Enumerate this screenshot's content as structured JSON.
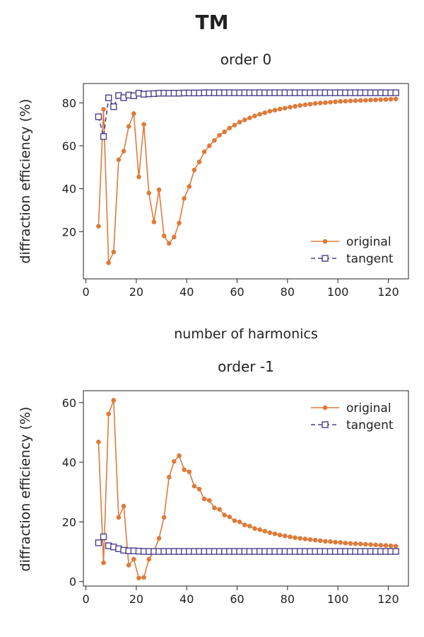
{
  "figure": {
    "title": "TM"
  },
  "colors": {
    "original": "#de7b3a",
    "tangent": "#4b3f8c"
  },
  "chart_data": [
    {
      "type": "line",
      "title": "order 0",
      "xlabel": "number of harmonics",
      "ylabel": "diffraction efficiency (%)",
      "xlim": [
        -1,
        128
      ],
      "ylim": [
        -2,
        89
      ],
      "xticks": [
        0,
        20,
        40,
        60,
        80,
        100,
        120
      ],
      "yticks": [
        20,
        40,
        60,
        80
      ],
      "legend": [
        "original",
        "tangent"
      ],
      "legend_position": "lower-right",
      "x": [
        5,
        7,
        9,
        11,
        13,
        15,
        17,
        19,
        21,
        23,
        25,
        27,
        29,
        31,
        33,
        35,
        37,
        39,
        41,
        43,
        45,
        47,
        49,
        51,
        53,
        55,
        57,
        59,
        61,
        63,
        65,
        67,
        69,
        71,
        73,
        75,
        77,
        79,
        81,
        83,
        85,
        87,
        89,
        91,
        93,
        95,
        97,
        99,
        101,
        103,
        105,
        107,
        109,
        111,
        113,
        115,
        117,
        119,
        121,
        123
      ],
      "series": [
        {
          "name": "original",
          "marker": "circle",
          "values": [
            22.5,
            77,
            5.5,
            10.5,
            53.5,
            57.5,
            69,
            75,
            45.5,
            70,
            38,
            24.5,
            39.5,
            18,
            14.5,
            17.5,
            24,
            35.5,
            41,
            48.7,
            52.5,
            57.2,
            60,
            62.5,
            64.9,
            66.5,
            68.3,
            69.6,
            71,
            72.1,
            73,
            73.9,
            74.7,
            75.4,
            76.1,
            76.6,
            77.1,
            77.5,
            78,
            78.4,
            78.8,
            79.1,
            79.4,
            79.7,
            79.9,
            80.1,
            80.3,
            80.5,
            80.7,
            80.8,
            80.9,
            81,
            81.1,
            81.2,
            81.3,
            81.4,
            81.5,
            81.6,
            81.7,
            81.8
          ]
        },
        {
          "name": "tangent",
          "marker": "square",
          "values": [
            73.5,
            64.3,
            82.3,
            78.2,
            83.4,
            82.4,
            83.6,
            83.3,
            84.5,
            84,
            84.2,
            84.3,
            84.5,
            84.5,
            84.5,
            84.5,
            84.5,
            84.6,
            84.6,
            84.6,
            84.6,
            84.7,
            84.7,
            84.7,
            84.7,
            84.7,
            84.7,
            84.7,
            84.7,
            84.7,
            84.7,
            84.7,
            84.7,
            84.7,
            84.7,
            84.7,
            84.7,
            84.7,
            84.7,
            84.7,
            84.7,
            84.7,
            84.7,
            84.7,
            84.7,
            84.7,
            84.7,
            84.7,
            84.7,
            84.7,
            84.7,
            84.7,
            84.7,
            84.7,
            84.7,
            84.7,
            84.7,
            84.7,
            84.7,
            84.7
          ]
        }
      ]
    },
    {
      "type": "line",
      "title": "order -1",
      "xlabel": "",
      "ylabel": "diffraction efficiency (%)",
      "xlim": [
        -1,
        128
      ],
      "ylim": [
        -1.5,
        64
      ],
      "xticks": [
        0,
        20,
        40,
        60,
        80,
        100,
        120
      ],
      "yticks": [
        0,
        20,
        40,
        60
      ],
      "legend": [
        "original",
        "tangent"
      ],
      "legend_position": "upper-right",
      "x": [
        5,
        7,
        9,
        11,
        13,
        15,
        17,
        19,
        21,
        23,
        25,
        27,
        29,
        31,
        33,
        35,
        37,
        39,
        41,
        43,
        45,
        47,
        49,
        51,
        53,
        55,
        57,
        59,
        61,
        63,
        65,
        67,
        69,
        71,
        73,
        75,
        77,
        79,
        81,
        83,
        85,
        87,
        89,
        91,
        93,
        95,
        97,
        99,
        101,
        103,
        105,
        107,
        109,
        111,
        113,
        115,
        117,
        119,
        121,
        123
      ],
      "series": [
        {
          "name": "original",
          "marker": "circle",
          "values": [
            46.8,
            6.3,
            56.2,
            60.8,
            21.5,
            25.3,
            5.5,
            7.5,
            1.2,
            1.4,
            7.5,
            10,
            14.5,
            21.5,
            35,
            40.3,
            42.2,
            37.5,
            36.8,
            32,
            31,
            27.7,
            27.2,
            24.7,
            24.2,
            22.3,
            21.7,
            20.4,
            20,
            19,
            18.6,
            17.8,
            17.4,
            16.9,
            16.4,
            16,
            15.6,
            15.3,
            15,
            14.7,
            14.5,
            14.3,
            14.1,
            13.9,
            13.7,
            13.5,
            13.4,
            13.2,
            13.1,
            12.9,
            12.8,
            12.7,
            12.6,
            12.5,
            12.4,
            12.3,
            12.2,
            12.1,
            12,
            11.9
          ]
        },
        {
          "name": "tangent",
          "marker": "square",
          "values": [
            13,
            15,
            12,
            11.6,
            11,
            10.5,
            10.3,
            10.3,
            10.2,
            10.1,
            10.1,
            10.1,
            10.1,
            10.1,
            10.1,
            10.1,
            10.1,
            10.1,
            10.1,
            10.1,
            10.1,
            10.1,
            10.1,
            10.1,
            10.1,
            10.1,
            10.1,
            10.1,
            10.1,
            10.1,
            10.1,
            10.1,
            10.1,
            10.1,
            10.1,
            10.1,
            10.1,
            10.1,
            10.1,
            10.1,
            10.1,
            10.1,
            10.1,
            10.1,
            10.1,
            10.1,
            10.1,
            10.1,
            10.1,
            10.1,
            10.1,
            10.1,
            10.1,
            10.1,
            10.1,
            10.1,
            10.1,
            10.1,
            10.1,
            10.1
          ]
        }
      ]
    }
  ]
}
